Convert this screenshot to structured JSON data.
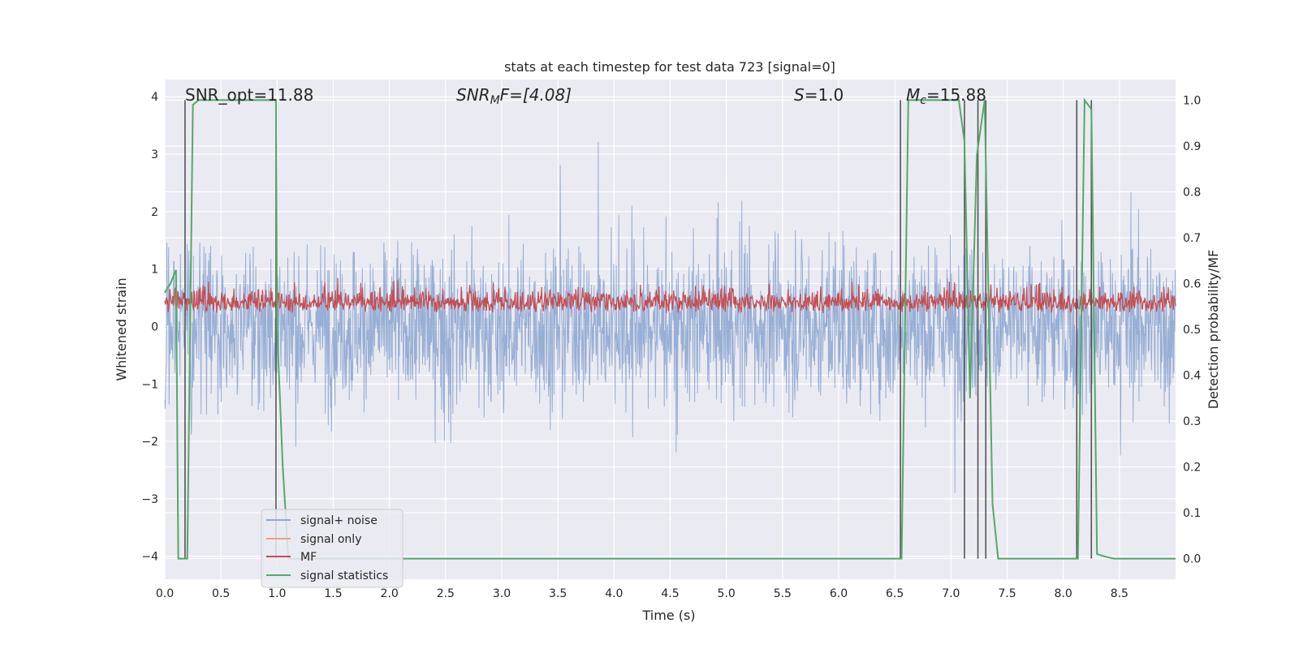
{
  "chart_data": {
    "type": "line",
    "title": "stats at each timestep for test data 723 [signal=0]",
    "xlabel": "Time (s)",
    "ylabel_left": "Whitened strain",
    "ylabel_right": "Detection probability/MF",
    "xlim": [
      0.0,
      9.0
    ],
    "ylim_left": [
      -4.4,
      4.3
    ],
    "ylim_right": [
      -0.045,
      1.045
    ],
    "xticks": [
      "0.0",
      "0.5",
      "1.0",
      "1.5",
      "2.0",
      "2.5",
      "3.0",
      "3.5",
      "4.0",
      "4.5",
      "5.0",
      "5.5",
      "6.0",
      "6.5",
      "7.0",
      "7.5",
      "8.0",
      "8.5"
    ],
    "yticks_left": [
      "4",
      "3",
      "2",
      "1",
      "0",
      "−1",
      "−2",
      "−3",
      "−4"
    ],
    "yticks_right": [
      "1.0",
      "0.9",
      "0.8",
      "0.7",
      "0.6",
      "0.5",
      "0.4",
      "0.3",
      "0.2",
      "0.1",
      "0.0"
    ],
    "annotations": {
      "snr_opt": "SNR_opt=11.88",
      "snr_mf_prefix": "SNR",
      "snr_mf_sub": "M",
      "snr_mf_rest": "F=[4.08]",
      "s_label": "S",
      "s_value": "=1.0",
      "mc_label": "M",
      "mc_sub": "c",
      "mc_value": "=15.88"
    },
    "legend": {
      "placement": "lower-left",
      "entries": [
        "signal+ noise",
        "signal only",
        "MF",
        "signal statistics"
      ]
    },
    "colors": {
      "noise": "#8fa7d0",
      "signal_only": "#e8a384",
      "mf": "#c44e52",
      "stats": "#55a868",
      "vlines": "#555555",
      "background": "#eaeaf2",
      "grid": "#ffffff"
    },
    "series": [
      {
        "name": "signal statistics",
        "axis": "right",
        "x": [
          0.0,
          0.05,
          0.1,
          0.12,
          0.17,
          0.2,
          0.25,
          0.3,
          0.6,
          0.99,
          1.0,
          1.05,
          1.1,
          2.0,
          4.0,
          6.0,
          6.56,
          6.62,
          6.7,
          7.0,
          7.07,
          7.12,
          7.17,
          7.23,
          7.3,
          7.37,
          7.42,
          7.6,
          8.0,
          8.1,
          8.13,
          8.19,
          8.25,
          8.3,
          8.36,
          8.45,
          8.8,
          9.0
        ],
        "y": [
          0.58,
          0.6,
          0.63,
          0.0,
          0.0,
          0.0,
          0.99,
          1.0,
          1.0,
          1.0,
          0.5,
          0.2,
          0.0,
          0.0,
          0.0,
          0.0,
          0.0,
          1.0,
          1.0,
          1.0,
          1.0,
          0.91,
          0.35,
          0.88,
          1.0,
          0.12,
          0.0,
          0.0,
          0.0,
          0.0,
          0.0,
          1.0,
          0.98,
          0.01,
          0.005,
          0.0,
          0.0,
          0.0
        ]
      }
    ],
    "vlines_x": [
      0.18,
      0.99,
      6.55,
      7.12,
      7.24,
      7.31,
      8.12,
      8.25
    ]
  }
}
